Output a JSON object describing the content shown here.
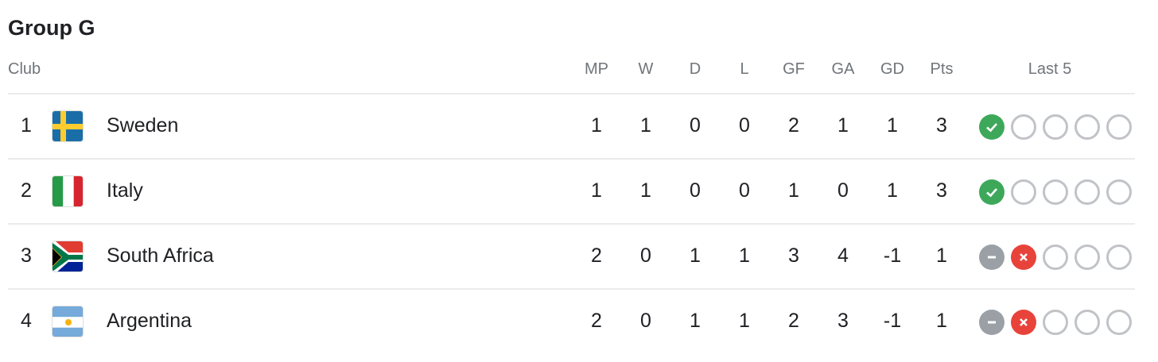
{
  "title": "Group G",
  "headers": {
    "club": "Club",
    "mp": "MP",
    "w": "W",
    "d": "D",
    "l": "L",
    "gf": "GF",
    "ga": "GA",
    "gd": "GD",
    "pts": "Pts",
    "last5": "Last 5"
  },
  "colors": {
    "win": "#3da85a",
    "draw": "#9aa0a6",
    "loss": "#e8433b",
    "empty": "#c0c3c7"
  },
  "rows": [
    {
      "rank": "1",
      "team": "Sweden",
      "flag": "sweden-flag-icon",
      "mp": "1",
      "w": "1",
      "d": "0",
      "l": "0",
      "gf": "2",
      "ga": "1",
      "gd": "1",
      "pts": "3",
      "last5": [
        "W",
        "",
        "",
        "",
        ""
      ]
    },
    {
      "rank": "2",
      "team": "Italy",
      "flag": "italy-flag-icon",
      "mp": "1",
      "w": "1",
      "d": "0",
      "l": "0",
      "gf": "1",
      "ga": "0",
      "gd": "1",
      "pts": "3",
      "last5": [
        "W",
        "",
        "",
        "",
        ""
      ]
    },
    {
      "rank": "3",
      "team": "South Africa",
      "flag": "south-africa-flag-icon",
      "mp": "2",
      "w": "0",
      "d": "1",
      "l": "1",
      "gf": "3",
      "ga": "4",
      "gd": "-1",
      "pts": "1",
      "last5": [
        "D",
        "L",
        "",
        "",
        ""
      ]
    },
    {
      "rank": "4",
      "team": "Argentina",
      "flag": "argentina-flag-icon",
      "mp": "2",
      "w": "0",
      "d": "1",
      "l": "1",
      "gf": "2",
      "ga": "3",
      "gd": "-1",
      "pts": "1",
      "last5": [
        "D",
        "L",
        "",
        "",
        ""
      ]
    }
  ]
}
